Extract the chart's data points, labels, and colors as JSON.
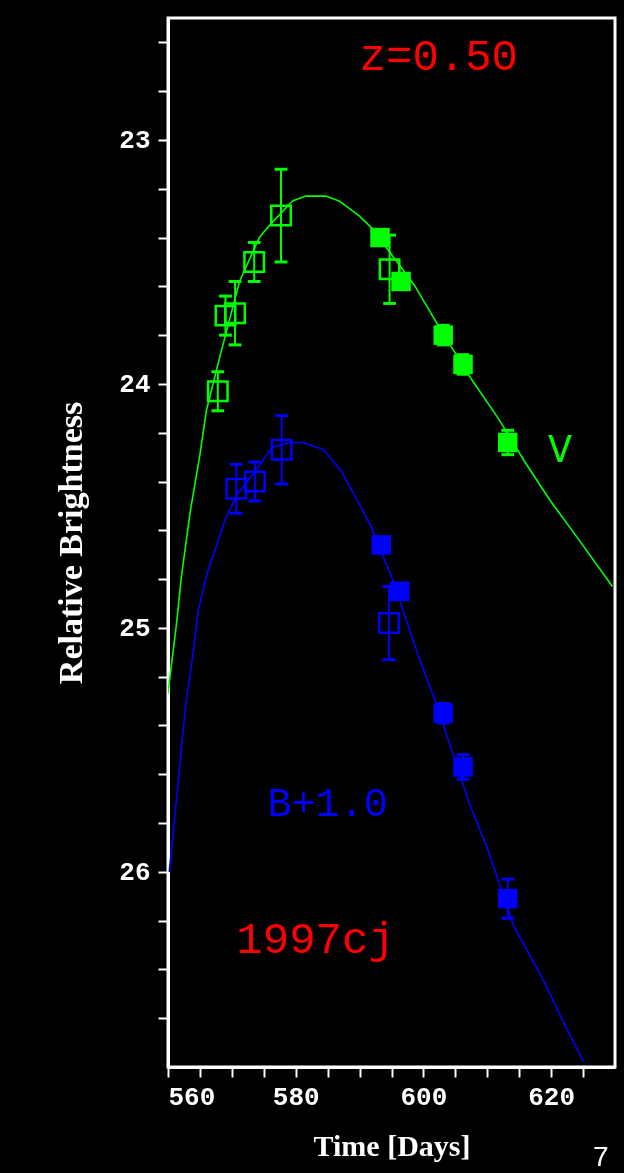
{
  "chart_data": {
    "type": "scatter",
    "xlabel": "Time [Days]",
    "ylabel": "Relative Brightness",
    "annotations": [
      "z=0.50",
      "1997cj",
      "7"
    ],
    "xlim": [
      560,
      630
    ],
    "ylim": [
      26.8,
      22.5
    ],
    "xticks": [
      560,
      {
        "value": 565,
        "label": null
      },
      {
        "value": 570,
        "label": null
      },
      {
        "value": 575,
        "label": null
      },
      580,
      {
        "value": 585,
        "label": null
      },
      {
        "value": 590,
        "label": null
      },
      {
        "value": 595,
        "label": null
      },
      600,
      {
        "value": 605,
        "label": null
      },
      {
        "value": 610,
        "label": null
      },
      {
        "value": 615,
        "label": null
      },
      620,
      {
        "value": 625,
        "label": null
      }
    ],
    "yticks": [
      {
        "value": 22.6,
        "label": null
      },
      {
        "value": 22.8,
        "label": null
      },
      23,
      {
        "value": 23.2,
        "label": null
      },
      {
        "value": 23.4,
        "label": null
      },
      {
        "value": 23.6,
        "label": null
      },
      {
        "value": 23.8,
        "label": null
      },
      24,
      {
        "value": 24.2,
        "label": null
      },
      {
        "value": 24.4,
        "label": null
      },
      {
        "value": 24.6,
        "label": null
      },
      {
        "value": 24.8,
        "label": null
      },
      25,
      {
        "value": 25.2,
        "label": null
      },
      {
        "value": 25.4,
        "label": null
      },
      {
        "value": 25.6,
        "label": null
      },
      {
        "value": 25.8,
        "label": null
      },
      26,
      {
        "value": 26.2,
        "label": null
      },
      {
        "value": 26.4,
        "label": null
      },
      {
        "value": 26.6,
        "label": null
      }
    ],
    "grid": false,
    "series": [
      {
        "name": "V",
        "type": "line",
        "color": "#00ff00",
        "marker": "none",
        "line_style": "solid",
        "x": [
          560,
          560.4,
          561.3,
          562.1,
          563.5,
          565.0,
          566.0,
          568.1,
          571.2,
          574.3,
          575.9,
          579.5,
          581.6,
          584.7,
          586.8,
          589.9,
          591.9,
          598.7,
          602.3,
          607.5,
          611.7,
          615.9,
          619.9,
          624.1,
          629.6
        ],
        "values": [
          25.27,
          25.18,
          24.99,
          24.79,
          24.52,
          24.29,
          24.11,
          23.89,
          23.58,
          23.4,
          23.35,
          23.25,
          23.23,
          23.23,
          23.25,
          23.31,
          23.36,
          23.6,
          23.76,
          23.98,
          24.14,
          24.32,
          24.48,
          24.63,
          24.83
        ]
      },
      {
        "color": "#00ff00",
        "marker": "square",
        "x": [
          567.8,
          569.0,
          570.5,
          573.5,
          577.7,
          594.7
        ],
        "values": [
          24.03,
          23.72,
          23.71,
          23.5,
          23.31,
          23.53
        ],
        "errors": [
          0.08,
          0.08,
          0.13,
          0.08,
          0.19,
          0.14
        ]
      },
      {
        "color": "#00ff00",
        "marker": "square",
        "x": [
          593.2,
          596.5,
          603.1,
          606.2,
          613.2
        ],
        "values": [
          23.4,
          23.58,
          23.8,
          23.92,
          24.24
        ],
        "errors": [
          0.03,
          0.03,
          0.04,
          0.04,
          0.05
        ]
      },
      {
        "name": "B+1.0",
        "type": "line",
        "color": "#0000ff",
        "marker": "none",
        "line_style": "solid",
        "x": [
          560.2,
          560.8,
          561.5,
          562.1,
          562.8,
          563.8,
          564.8,
          566.2,
          567.5,
          568.9,
          570.9,
          573.6,
          576.3,
          579.1,
          581.1,
          584.4,
          587.2,
          589.9,
          591.9,
          595.3,
          599.4,
          602.0,
          607.2,
          610.1,
          614.1,
          618.7,
          622.2,
          625.1
        ],
        "values": [
          26.0,
          25.84,
          25.66,
          25.49,
          25.31,
          25.13,
          24.92,
          24.77,
          24.67,
          24.56,
          24.45,
          24.36,
          24.26,
          24.24,
          24.24,
          24.27,
          24.36,
          24.49,
          24.59,
          24.81,
          25.13,
          25.31,
          25.72,
          25.91,
          26.22,
          26.44,
          26.63,
          26.78
        ]
      },
      {
        "color": "#0000ff",
        "marker": "square",
        "x": [
          570.7,
          573.6,
          577.8,
          594.6
        ],
        "values": [
          24.43,
          24.4,
          24.27,
          24.98
        ],
        "errors": [
          0.1,
          0.08,
          0.14,
          0.15
        ]
      },
      {
        "color": "#0000ff",
        "marker": "square",
        "x": [
          593.4,
          596.3,
          603.1,
          606.2,
          613.2
        ],
        "values": [
          24.66,
          24.85,
          25.35,
          25.57,
          26.11
        ],
        "errors": [
          0.03,
          0.03,
          0.04,
          0.05,
          0.08
        ]
      }
    ]
  }
}
